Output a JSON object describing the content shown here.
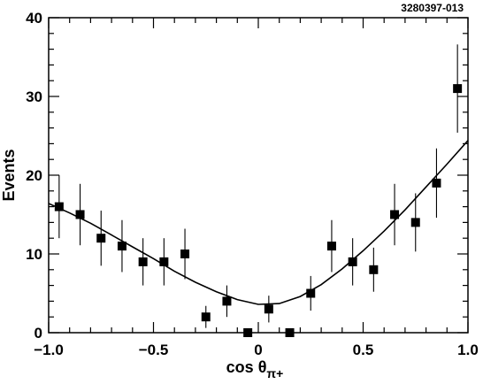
{
  "figure_code": "3280397-013",
  "chart_data": {
    "type": "scatter",
    "xlabel": "cos θ",
    "xlabel_subscript": "π+",
    "ylabel": "Events",
    "xlim": [
      -1.0,
      1.0
    ],
    "ylim": [
      0,
      40
    ],
    "x_ticks": [
      -1.0,
      -0.5,
      0,
      0.5,
      1.0
    ],
    "x_tick_labels": [
      "−1.0",
      "−0.5",
      "0",
      "0.5",
      "1.0"
    ],
    "y_ticks": [
      0,
      10,
      20,
      30,
      40
    ],
    "y_tick_labels": [
      "0",
      "10",
      "20",
      "30",
      "40"
    ],
    "grid": false,
    "points": [
      {
        "x": -0.95,
        "y": 16,
        "err": 4.0
      },
      {
        "x": -0.85,
        "y": 15,
        "err": 3.9
      },
      {
        "x": -0.75,
        "y": 12,
        "err": 3.5
      },
      {
        "x": -0.65,
        "y": 11,
        "err": 3.3
      },
      {
        "x": -0.55,
        "y": 9,
        "err": 3.0
      },
      {
        "x": -0.45,
        "y": 9,
        "err": 3.0
      },
      {
        "x": -0.35,
        "y": 10,
        "err": 3.2
      },
      {
        "x": -0.25,
        "y": 2,
        "err": 1.4
      },
      {
        "x": -0.15,
        "y": 4,
        "err": 2.0
      },
      {
        "x": -0.05,
        "y": 0,
        "err": 0
      },
      {
        "x": 0.05,
        "y": 3,
        "err": 1.7
      },
      {
        "x": 0.15,
        "y": 0,
        "err": 0
      },
      {
        "x": 0.25,
        "y": 5,
        "err": 2.2
      },
      {
        "x": 0.35,
        "y": 11,
        "err": 3.3
      },
      {
        "x": 0.45,
        "y": 9,
        "err": 3.0
      },
      {
        "x": 0.55,
        "y": 8,
        "err": 2.8
      },
      {
        "x": 0.65,
        "y": 15,
        "err": 3.9
      },
      {
        "x": 0.75,
        "y": 14,
        "err": 3.7
      },
      {
        "x": 0.85,
        "y": 19,
        "err": 4.4
      },
      {
        "x": 0.95,
        "y": 31,
        "err": 5.6
      }
    ],
    "fit": {
      "x": [
        -1.0,
        -0.9,
        -0.8,
        -0.7,
        -0.6,
        -0.5,
        -0.4,
        -0.3,
        -0.2,
        -0.1,
        0.0,
        0.1,
        0.2,
        0.3,
        0.4,
        0.5,
        0.6,
        0.7,
        0.8,
        0.9,
        1.0
      ],
      "y": [
        16.4,
        15.2,
        13.9,
        12.4,
        10.9,
        9.4,
        7.8,
        6.4,
        5.2,
        4.2,
        3.6,
        3.7,
        4.6,
        6.1,
        8.1,
        10.4,
        12.9,
        15.6,
        18.5,
        21.4,
        24.4
      ]
    }
  }
}
